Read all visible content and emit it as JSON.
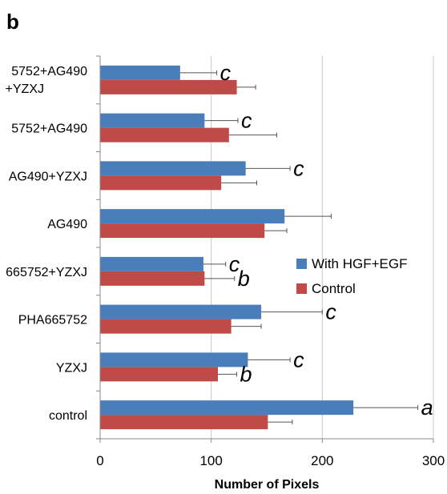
{
  "panel_label": "b",
  "chart_data": {
    "type": "bar",
    "orientation": "horizontal",
    "categories_top_to_bottom": [
      [
        "5752+AG490",
        "+YZXJ"
      ],
      [
        "5752+AG490"
      ],
      [
        "AG490+YZXJ"
      ],
      [
        "AG490"
      ],
      [
        "665752+YZXJ"
      ],
      [
        "PHA665752"
      ],
      [
        "YZXJ"
      ],
      [
        "control"
      ]
    ],
    "series": [
      {
        "name": "With HGF+EGF",
        "color": "#4a7ebb",
        "values": [
          72,
          94,
          131,
          166,
          93,
          145,
          133,
          228
        ],
        "errors": [
          33,
          30,
          40,
          42,
          20,
          55,
          38,
          58
        ]
      },
      {
        "name": "Control",
        "color": "#be4b48",
        "values": [
          123,
          116,
          109,
          148,
          94,
          118,
          106,
          151
        ],
        "errors": [
          17,
          43,
          32,
          20,
          27,
          27,
          17,
          22
        ]
      }
    ],
    "significance_labels": [
      [
        "c",
        ""
      ],
      [
        "c",
        ""
      ],
      [
        "c",
        ""
      ],
      [
        "",
        ""
      ],
      [
        "c",
        "b"
      ],
      [
        "c",
        ""
      ],
      [
        "c",
        "b"
      ],
      [
        "a",
        ""
      ]
    ],
    "xlim": [
      0,
      300
    ],
    "xticks": [
      "0",
      "100",
      "200",
      "300"
    ],
    "xlabel": "Number of Pixels",
    "grid": "vertical",
    "legend_position": "right-middle"
  }
}
